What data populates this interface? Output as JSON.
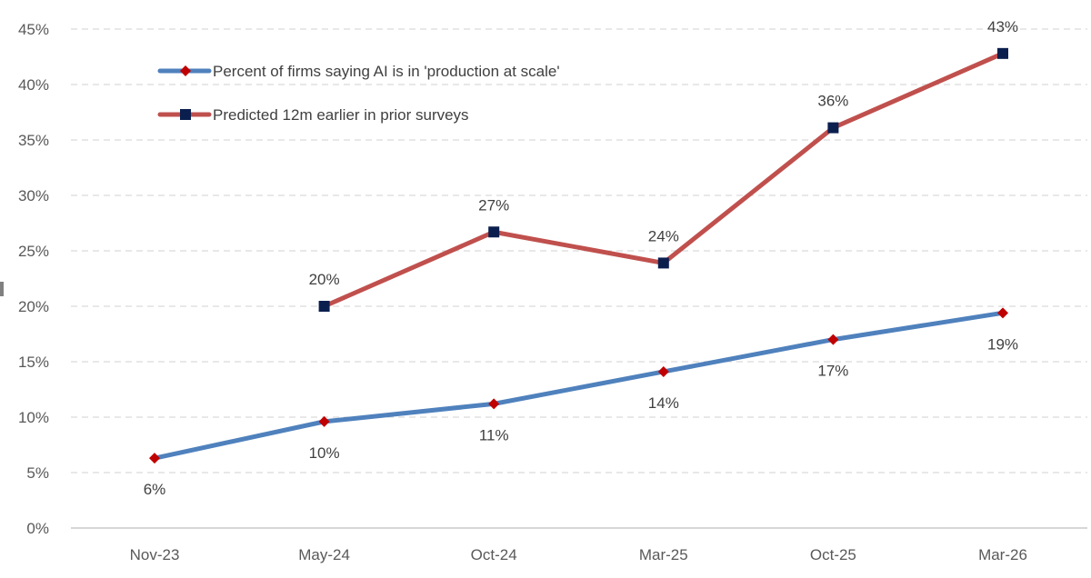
{
  "chart_data": {
    "type": "line",
    "title": "",
    "xlabel": "",
    "ylabel": "",
    "categories": [
      "Nov-23",
      "May-24",
      "Oct-24",
      "Mar-25",
      "Oct-25",
      "Mar-26"
    ],
    "ylim": [
      0,
      0.45
    ],
    "yticks": [
      {
        "value": 0,
        "label": "0%"
      },
      {
        "value": 0.05,
        "label": "5%"
      },
      {
        "value": 0.1,
        "label": "10%"
      },
      {
        "value": 0.15,
        "label": "15%"
      },
      {
        "value": 0.2,
        "label": "20%"
      },
      {
        "value": 0.25,
        "label": "25%"
      },
      {
        "value": 0.3,
        "label": "30%"
      },
      {
        "value": 0.35,
        "label": "35%"
      },
      {
        "value": 0.4,
        "label": "40%"
      },
      {
        "value": 0.45,
        "label": "45%"
      }
    ],
    "grid": "horizontal-dashed",
    "legend_position": "top-left",
    "series": [
      {
        "name": "Percent of firms saying AI is in 'production at scale'",
        "color": "#4f81bd",
        "marker_color": "#c00000",
        "marker": "diamond",
        "label_position": "below",
        "values": [
          0.063,
          0.096,
          0.112,
          0.141,
          0.17,
          0.194
        ],
        "labels": [
          "6%",
          "10%",
          "11%",
          "14%",
          "17%",
          "19%"
        ]
      },
      {
        "name": "Predicted 12m earlier in prior surveys",
        "color": "#c0504d",
        "marker_color": "#0b1f4f",
        "marker": "square",
        "label_position": "above",
        "values": [
          null,
          0.2,
          0.267,
          0.239,
          0.361,
          0.428
        ],
        "labels": [
          "",
          "20%",
          "27%",
          "24%",
          "36%",
          "43%"
        ]
      }
    ]
  }
}
